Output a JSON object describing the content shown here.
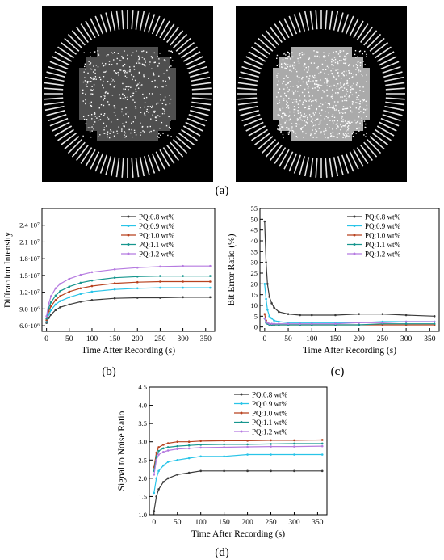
{
  "captions": {
    "a": "(a)",
    "b": "(b)",
    "c": "(c)",
    "d": "(d)"
  },
  "colors": {
    "pq08": "#3a3a3a",
    "pq09": "#29c4e8",
    "pq10": "#b8421f",
    "pq11": "#16968e",
    "pq12": "#b57ae0"
  },
  "legend_labels": [
    "PQ:0.8 wt%",
    "PQ:0.9 wt%",
    "PQ:1.0 wt%",
    "PQ:1.1 wt%",
    "PQ:1.2 wt%"
  ],
  "chart_data": [
    {
      "id": "b",
      "type": "line",
      "xlabel": "Time After Recording (s)",
      "ylabel": "Diffraction Intensity",
      "xlim": [
        -10,
        370
      ],
      "ylim": [
        5000000,
        27000000
      ],
      "xticks": [
        0,
        50,
        100,
        150,
        200,
        250,
        300,
        350
      ],
      "xtick_labels": [
        "0",
        "50",
        "100",
        "150",
        "200",
        "250",
        "300",
        "350"
      ],
      "yticks": [
        6000000,
        9000000,
        12000000,
        15000000,
        18000000,
        21000000,
        24000000
      ],
      "ytick_labels": [
        "6.0·10⁶",
        "9.0·10⁶",
        "1.2·10⁷",
        "1.5·10⁷",
        "1.8·10⁷",
        "2.1·10⁷",
        "2.4·10⁷"
      ],
      "legend_position": "top-right",
      "series": [
        {
          "name": "PQ:0.8 wt%",
          "color_key": "pq08",
          "x": [
            0,
            5,
            10,
            20,
            30,
            50,
            75,
            100,
            150,
            200,
            250,
            300,
            360
          ],
          "y": [
            6500000,
            7400000,
            8000000,
            8800000,
            9300000,
            9800000,
            10300000,
            10600000,
            10900000,
            11000000,
            11000000,
            11100000,
            11100000
          ]
        },
        {
          "name": "PQ:0.9 wt%",
          "color_key": "pq09",
          "x": [
            0,
            5,
            10,
            20,
            30,
            50,
            75,
            100,
            150,
            200,
            250,
            300,
            360
          ],
          "y": [
            6700000,
            8000000,
            8800000,
            9800000,
            10400000,
            11100000,
            11700000,
            12100000,
            12500000,
            12700000,
            12800000,
            12800000,
            12800000
          ]
        },
        {
          "name": "PQ:1.0 wt%",
          "color_key": "pq10",
          "x": [
            0,
            5,
            10,
            20,
            30,
            50,
            75,
            100,
            150,
            200,
            250,
            300,
            360
          ],
          "y": [
            7000000,
            8600000,
            9500000,
            10600000,
            11300000,
            12100000,
            12700000,
            13100000,
            13600000,
            13800000,
            13900000,
            13900000,
            13900000
          ]
        },
        {
          "name": "PQ:1.1 wt%",
          "color_key": "pq11",
          "x": [
            0,
            5,
            10,
            20,
            30,
            50,
            75,
            100,
            150,
            200,
            250,
            300,
            360
          ],
          "y": [
            7300000,
            9200000,
            10200000,
            11400000,
            12200000,
            13000000,
            13700000,
            14100000,
            14600000,
            14800000,
            14900000,
            14900000,
            14900000
          ]
        },
        {
          "name": "PQ:1.2 wt%",
          "color_key": "pq12",
          "x": [
            0,
            5,
            10,
            20,
            30,
            50,
            75,
            100,
            150,
            200,
            250,
            300,
            360
          ],
          "y": [
            7700000,
            10000000,
            11300000,
            12700000,
            13500000,
            14400000,
            15100000,
            15600000,
            16100000,
            16400000,
            16600000,
            16700000,
            16700000
          ]
        }
      ]
    },
    {
      "id": "c",
      "type": "line",
      "xlabel": "Time After Recording (s)",
      "ylabel": "Bit Error Ratio (%)",
      "xlim": [
        -10,
        370
      ],
      "ylim": [
        -2,
        55
      ],
      "xticks": [
        0,
        50,
        100,
        150,
        200,
        250,
        300,
        350
      ],
      "xtick_labels": [
        "0",
        "50",
        "100",
        "150",
        "200",
        "250",
        "300",
        "350"
      ],
      "yticks": [
        0,
        5,
        10,
        15,
        20,
        25,
        30,
        35,
        40,
        45,
        50,
        55
      ],
      "ytick_labels": [
        "0",
        "5",
        "10",
        "15",
        "20",
        "25",
        "30",
        "35",
        "40",
        "45",
        "50",
        "55"
      ],
      "legend_position": "top-right",
      "series": [
        {
          "name": "PQ:0.8 wt%",
          "color_key": "pq08",
          "x": [
            0,
            3,
            6,
            10,
            15,
            20,
            30,
            50,
            75,
            100,
            150,
            200,
            250,
            300,
            360
          ],
          "y": [
            49,
            30,
            20,
            14,
            11,
            9,
            7,
            6,
            5.5,
            5.5,
            5.5,
            6,
            6,
            5.5,
            5
          ]
        },
        {
          "name": "PQ:0.9 wt%",
          "color_key": "pq09",
          "x": [
            0,
            3,
            6,
            10,
            15,
            20,
            30,
            50,
            75,
            100,
            150,
            200,
            250,
            300,
            360
          ],
          "y": [
            20,
            13,
            8,
            5,
            4,
            3,
            2.5,
            2,
            2,
            2,
            2,
            2,
            2.5,
            2.5,
            2.5
          ]
        },
        {
          "name": "PQ:1.0 wt%",
          "color_key": "pq10",
          "x": [
            0,
            3,
            6,
            10,
            15,
            20,
            30,
            50,
            75,
            100,
            150,
            200,
            250,
            300,
            360
          ],
          "y": [
            6,
            3,
            2,
            1.5,
            1,
            1,
            1,
            1,
            1,
            1,
            1,
            1,
            1,
            1,
            1
          ]
        },
        {
          "name": "PQ:1.1 wt%",
          "color_key": "pq11",
          "x": [
            0,
            3,
            6,
            10,
            15,
            20,
            30,
            50,
            75,
            100,
            150,
            200,
            250,
            300,
            360
          ],
          "y": [
            4,
            2,
            1.5,
            1,
            1,
            1,
            1,
            1,
            1,
            1,
            1,
            1,
            1.5,
            1.5,
            1.5
          ]
        },
        {
          "name": "PQ:1.2 wt%",
          "color_key": "pq12",
          "x": [
            0,
            3,
            6,
            10,
            15,
            20,
            30,
            50,
            75,
            100,
            150,
            200,
            250,
            300,
            360
          ],
          "y": [
            4,
            2.5,
            2,
            1.5,
            1.5,
            1.5,
            1.5,
            1.5,
            1.5,
            1.5,
            1.5,
            2,
            2,
            2.5,
            2.5
          ]
        }
      ]
    },
    {
      "id": "d",
      "type": "line",
      "xlabel": "Time After Recording (s)",
      "ylabel": "Signal to Noise Ratio",
      "xlim": [
        -10,
        370
      ],
      "ylim": [
        1.0,
        4.5
      ],
      "xticks": [
        0,
        50,
        100,
        150,
        200,
        250,
        300,
        350
      ],
      "xtick_labels": [
        "0",
        "50",
        "100",
        "150",
        "200",
        "250",
        "300",
        "350"
      ],
      "yticks": [
        1.0,
        1.5,
        2.0,
        2.5,
        3.0,
        3.5,
        4.0,
        4.5
      ],
      "ytick_labels": [
        "1.0",
        "1.5",
        "2.0",
        "2.5",
        "3.0",
        "3.5",
        "4.0",
        "4.5"
      ],
      "legend_position": "top-right",
      "series": [
        {
          "name": "PQ:0.8 wt%",
          "color_key": "pq08",
          "x": [
            0,
            5,
            10,
            20,
            30,
            50,
            75,
            100,
            150,
            200,
            250,
            300,
            360
          ],
          "y": [
            1.1,
            1.5,
            1.7,
            1.9,
            2.0,
            2.1,
            2.15,
            2.2,
            2.2,
            2.2,
            2.2,
            2.2,
            2.2
          ]
        },
        {
          "name": "PQ:0.9 wt%",
          "color_key": "pq09",
          "x": [
            0,
            5,
            10,
            20,
            30,
            50,
            75,
            100,
            150,
            200,
            250,
            300,
            360
          ],
          "y": [
            1.6,
            2.0,
            2.2,
            2.35,
            2.45,
            2.5,
            2.55,
            2.6,
            2.6,
            2.65,
            2.65,
            2.65,
            2.65
          ]
        },
        {
          "name": "PQ:1.0 wt%",
          "color_key": "pq10",
          "x": [
            0,
            5,
            10,
            20,
            30,
            50,
            75,
            100,
            150,
            200,
            250,
            300,
            360
          ],
          "y": [
            2.3,
            2.7,
            2.85,
            2.92,
            2.96,
            3.0,
            3.0,
            3.02,
            3.03,
            3.03,
            3.04,
            3.04,
            3.05
          ]
        },
        {
          "name": "PQ:1.1 wt%",
          "color_key": "pq11",
          "x": [
            0,
            5,
            10,
            20,
            30,
            50,
            75,
            100,
            150,
            200,
            250,
            300,
            360
          ],
          "y": [
            2.2,
            2.6,
            2.75,
            2.82,
            2.85,
            2.88,
            2.9,
            2.92,
            2.93,
            2.93,
            2.94,
            2.95,
            2.95
          ]
        },
        {
          "name": "PQ:1.2 wt%",
          "color_key": "pq12",
          "x": [
            0,
            5,
            10,
            20,
            30,
            50,
            75,
            100,
            150,
            200,
            250,
            300,
            360
          ],
          "y": [
            2.1,
            2.5,
            2.65,
            2.72,
            2.76,
            2.8,
            2.82,
            2.84,
            2.85,
            2.86,
            2.87,
            2.87,
            2.88
          ]
        }
      ]
    }
  ]
}
